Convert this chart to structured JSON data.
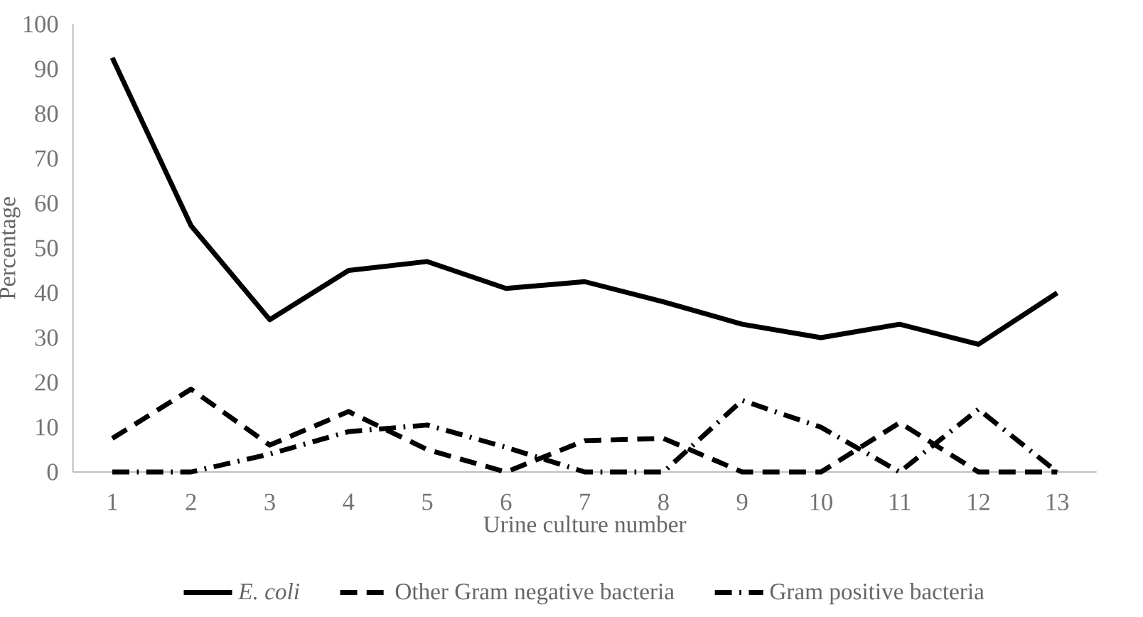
{
  "chart_data": {
    "type": "line",
    "xlabel": "Urine culture number",
    "ylabel": "Percentage",
    "categories": [
      "1",
      "2",
      "3",
      "4",
      "5",
      "6",
      "7",
      "8",
      "9",
      "10",
      "11",
      "12",
      "13"
    ],
    "series": [
      {
        "name": "*E. coli*",
        "color": "#000000",
        "line_style": "solid",
        "values": [
          92.5,
          55,
          34,
          45,
          47,
          41,
          42.5,
          38,
          33,
          30,
          33,
          28.5,
          40
        ]
      },
      {
        "name": "Other Gram negative bacteria",
        "color": "#000000",
        "line_style": "dashed",
        "values": [
          7.5,
          18.5,
          6,
          13.5,
          5,
          0,
          7,
          7.5,
          0,
          0,
          11,
          0,
          0
        ]
      },
      {
        "name": "Gram positive bacteria",
        "color": "#000000",
        "line_style": "dashdot",
        "values": [
          0,
          0,
          4,
          9,
          10.5,
          5.5,
          0,
          0,
          16,
          10,
          0,
          14,
          0
        ]
      }
    ],
    "ylim": [
      0,
      100
    ],
    "yticks": [
      0,
      10,
      20,
      30,
      40,
      50,
      60,
      70,
      80,
      90,
      100
    ],
    "grid": false,
    "legend": "bottom",
    "marker": "none"
  }
}
